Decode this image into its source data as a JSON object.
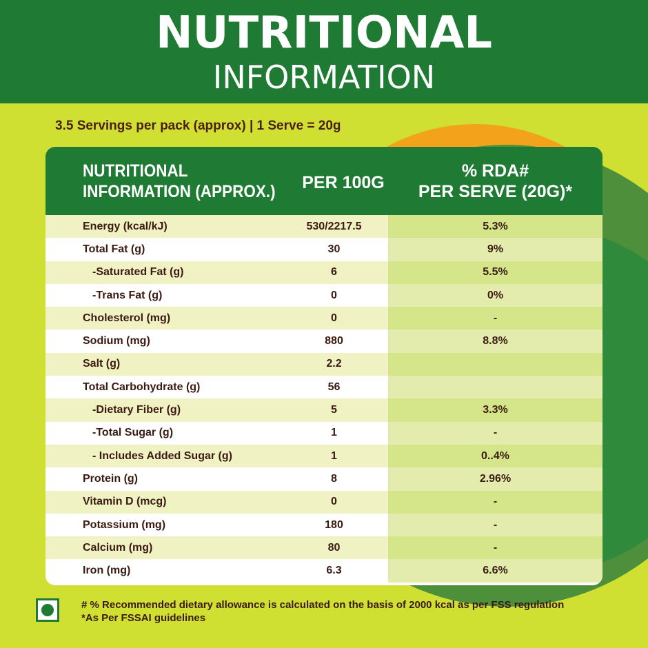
{
  "header": {
    "title": "NUTRITIONAL",
    "subtitle": "INFORMATION"
  },
  "servings_text": "3.5 Servings per pack (approx) | 1 Serve = 20g",
  "table": {
    "columns": {
      "name_line1": "NUTRITIONAL",
      "name_line2": "INFORMATION (APPROX.)",
      "per_100g": "PER 100G",
      "rda_line1": "% RDA#",
      "rda_line2": "PER SERVE (20G)*"
    },
    "rows": [
      {
        "name": "Energy (kcal/kJ)",
        "per_100g": "530/2217.5",
        "rda": "5.3%"
      },
      {
        "name": "Total Fat (g)",
        "per_100g": "30",
        "rda": "9%"
      },
      {
        "name": "-Saturated Fat (g)",
        "per_100g": "6",
        "rda": "5.5%"
      },
      {
        "name": "-Trans Fat (g)",
        "per_100g": "0",
        "rda": "0%"
      },
      {
        "name": "Cholesterol (mg)",
        "per_100g": "0",
        "rda": "-"
      },
      {
        "name": "Sodium (mg)",
        "per_100g": "880",
        "rda": "8.8%"
      },
      {
        "name": "Salt (g)",
        "per_100g": "2.2",
        "rda": ""
      },
      {
        "name": "Total Carbohydrate (g)",
        "per_100g": "56",
        "rda": ""
      },
      {
        "name": "-Dietary Fiber (g)",
        "per_100g": "5",
        "rda": "3.3%"
      },
      {
        "name": "-Total Sugar (g)",
        "per_100g": "1",
        "rda": "-"
      },
      {
        "name": "- Includes Added Sugar (g)",
        "per_100g": "1",
        "rda": "0..4%"
      },
      {
        "name": "Protein (g)",
        "per_100g": "8",
        "rda": "2.96%"
      },
      {
        "name": "Vitamin D (mcg)",
        "per_100g": "0",
        "rda": "-"
      },
      {
        "name": "Potassium (mg)",
        "per_100g": "180",
        "rda": "-"
      },
      {
        "name": "Calcium (mg)",
        "per_100g": "80",
        "rda": "-"
      },
      {
        "name": "Iron (mg)",
        "per_100g": "6.3",
        "rda": "6.6%"
      }
    ]
  },
  "footer": {
    "note1": "# % Recommended dietary allowance  is calculated on the basis of 2000 kcal as per FSS regulation",
    "note2": "*As Per FSSAI guidelines"
  },
  "colors": {
    "header_green": "#1f7a34",
    "background_lime": "#cfe033",
    "text_brown": "#3a1a12",
    "accent_orange": "#f2a31b"
  }
}
